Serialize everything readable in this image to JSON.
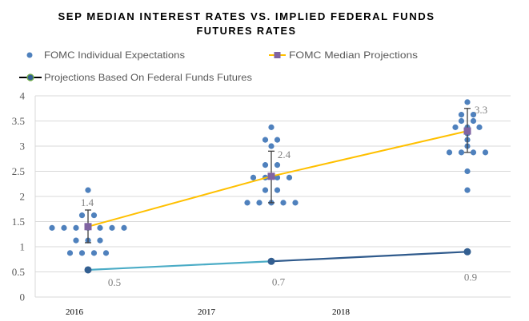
{
  "chart_data": {
    "type": "scatter",
    "title": "SEP MEDIAN INTEREST RATES VS. IMPLIED FEDERAL FUNDS FUTURES RATES",
    "title_lines": [
      "SEP MEDIAN INTEREST RATES VS. IMPLIED FEDERAL FUNDS",
      "FUTURES RATES"
    ],
    "xlabel": "",
    "ylabel": "",
    "categories": [
      "2016",
      "2017",
      "2018"
    ],
    "ylim": [
      0,
      4
    ],
    "yticks": [
      0,
      0.5,
      1,
      1.5,
      2,
      2.5,
      3,
      3.5,
      4
    ],
    "grid": true,
    "legend_position": "top",
    "series": [
      {
        "name": "FOMC Individual Expectations",
        "type": "scatter",
        "color": "#4f81bd",
        "values": [
          [
            2.125,
            1.625,
            1.625,
            1.375,
            1.375,
            1.375,
            1.375,
            1.375,
            1.375,
            1.375,
            1.125,
            1.125,
            1.125,
            0.875,
            0.875,
            0.875,
            0.875
          ],
          [
            3.375,
            3.125,
            3.125,
            3.0,
            2.625,
            2.625,
            2.375,
            2.375,
            2.375,
            2.375,
            2.125,
            2.125,
            1.875,
            1.875,
            1.875,
            1.875,
            1.875
          ],
          [
            3.875,
            3.625,
            3.625,
            3.5,
            3.5,
            3.375,
            3.375,
            3.375,
            3.25,
            3.125,
            3.0,
            2.875,
            2.875,
            2.875,
            2.875,
            2.5,
            2.125
          ]
        ]
      },
      {
        "name": "FOMC Median Projections",
        "type": "line",
        "color": "#ffc000",
        "marker_color": "#8064a2",
        "values": [
          1.4,
          2.4,
          3.3
        ],
        "labels": [
          "1.4",
          "2.4",
          "3.3"
        ],
        "error_bars": [
          [
            1.08,
            1.73
          ],
          [
            1.875,
            2.9
          ],
          [
            2.875,
            3.75
          ]
        ],
        "error_bar_color": "#404040"
      },
      {
        "name": "Projections Based On Federal Funds Futures",
        "type": "line",
        "color": "#2f5a8c",
        "segment_colors": [
          "#4bacc6",
          "#2f5a8c"
        ],
        "marker_color": "#335f91",
        "legend_line_color": "#000000",
        "legend_marker_border": "#70ad47",
        "values": [
          0.54,
          0.71,
          0.9
        ],
        "labels": [
          "0.5",
          "0.7",
          "0.9"
        ]
      }
    ]
  }
}
